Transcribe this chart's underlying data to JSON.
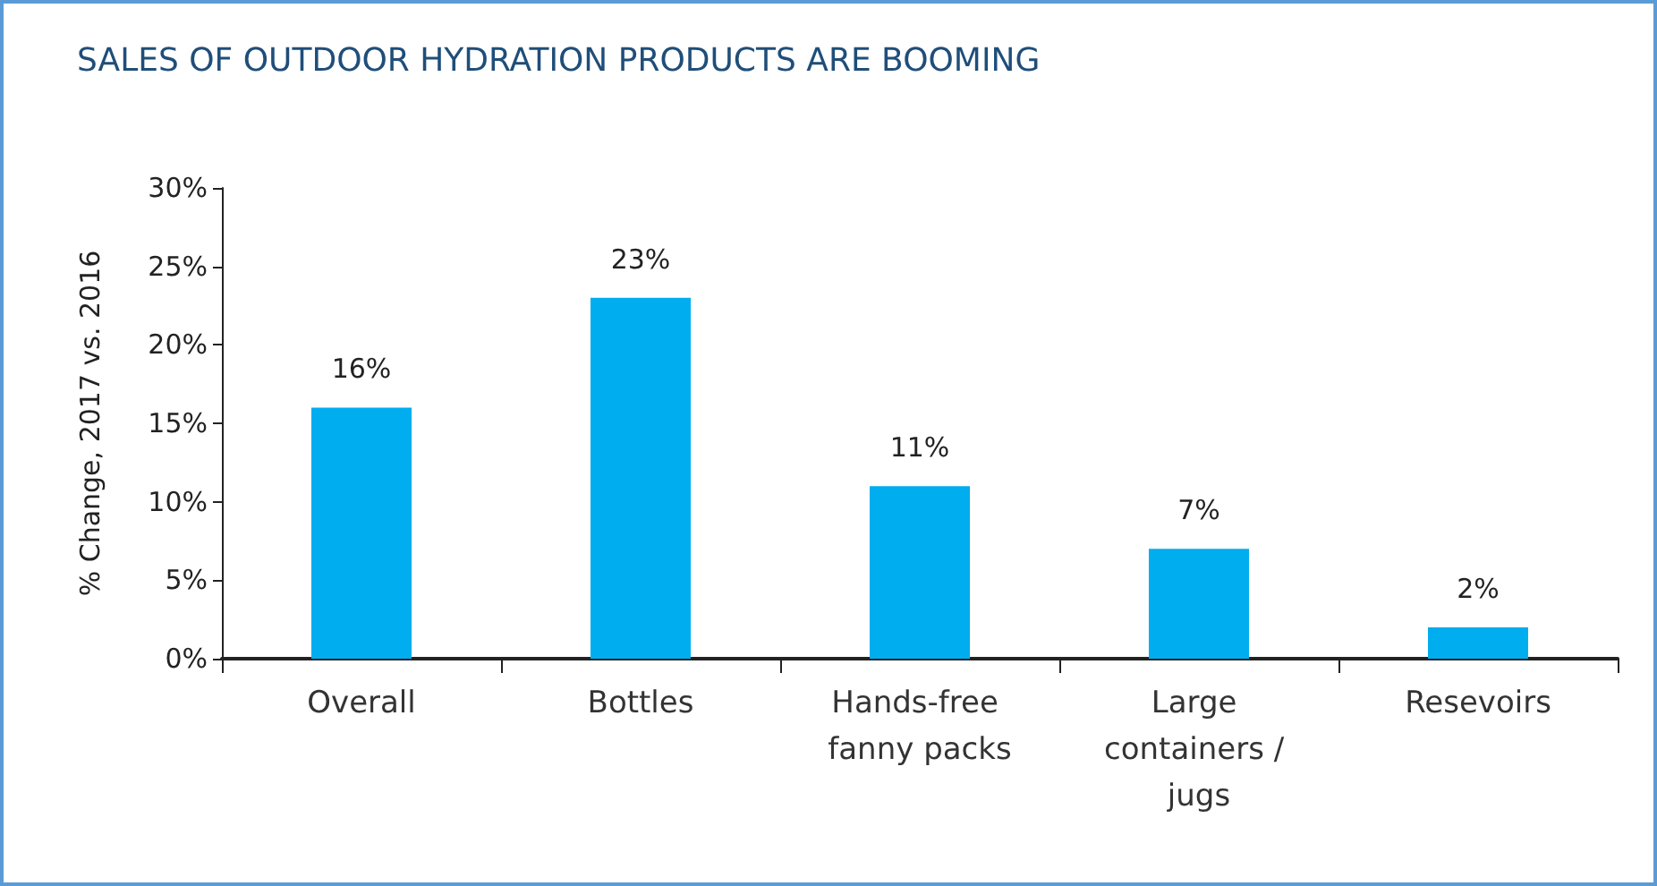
{
  "chart_data": {
    "type": "bar",
    "title": "SALES OF OUTDOOR HYDRATION PRODUCTS ARE BOOMING",
    "ylabel": "% Change, 2017 vs. 2016",
    "categories": [
      "Overall",
      "Bottles",
      "Hands-free fanny packs",
      "Large containers / jugs",
      "Resevoirs"
    ],
    "values": [
      16,
      23,
      11,
      7,
      2
    ],
    "color": "#00adee",
    "value_labels": [
      "16%",
      "23%",
      "11%",
      "7%",
      "2%"
    ],
    "ylim": [
      0,
      30
    ],
    "yticks": [
      {
        "value": 0,
        "label": "0%"
      },
      {
        "value": 5,
        "label": "5%"
      },
      {
        "value": 10,
        "label": "10%"
      },
      {
        "value": 15,
        "label": "15%"
      },
      {
        "value": 20,
        "label": "20%"
      },
      {
        "value": 25,
        "label": "25%"
      },
      {
        "value": 30,
        "label": "30%"
      }
    ],
    "grid": false
  }
}
